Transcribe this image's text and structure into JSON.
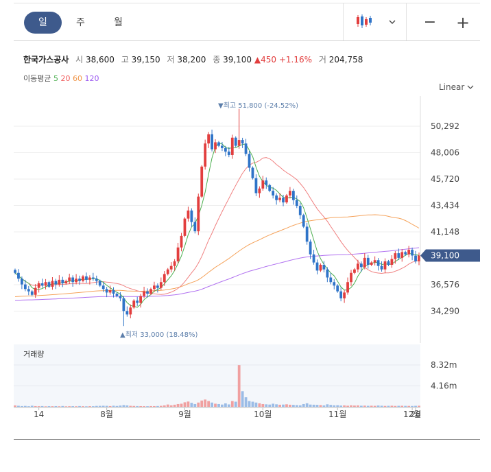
{
  "tabs": [
    {
      "label": "일",
      "active": true
    },
    {
      "label": "주",
      "active": false
    },
    {
      "label": "월",
      "active": false
    }
  ],
  "toolbar": {
    "chart_type_icon": "candlestick-icon",
    "dropdown_icon": "chevron-down-icon",
    "zoom_out": "−",
    "zoom_in": "+"
  },
  "stock": {
    "name": "한국가스공사",
    "open_label": "시",
    "open": "38,600",
    "high_label": "고",
    "high": "39,150",
    "low_label": "저",
    "low": "38,200",
    "close_label": "종",
    "close": "39,100",
    "change": "▲450",
    "change_pct": "+1.16%",
    "volume_label": "거",
    "volume": "204,758"
  },
  "ma_legend": {
    "label": "이동평균",
    "items": [
      {
        "period": "5",
        "color": "#4caf50"
      },
      {
        "period": "20",
        "color": "#f05c5c"
      },
      {
        "period": "60",
        "color": "#f0964a"
      },
      {
        "period": "120",
        "color": "#9b59f0"
      }
    ]
  },
  "scale_label": "Linear",
  "colors": {
    "up": "#e23e3e",
    "down": "#2f74c8",
    "current_tag": "#3e5a8c",
    "ma5": "#4caf50",
    "ma20": "#f08080",
    "ma60": "#f5a25a",
    "ma120": "#b070f0",
    "grid": "#eeeeee"
  },
  "chart_data": {
    "type": "candlestick",
    "y_ticks": [
      "50,292",
      "48,006",
      "45,720",
      "43,434",
      "41,148",
      "36,576",
      "34,290"
    ],
    "current_price": "39,100",
    "max_annotation": "▼최고 51,800 (-24.52%)",
    "min_annotation": "▲최저 33,000 (18.48%)",
    "volume_label": "거래량",
    "volume_ticks": [
      "8.32m",
      "4.16m"
    ],
    "x_labels": [
      "14",
      "8월",
      "9월",
      "10월",
      "11월",
      "12월",
      "28"
    ],
    "ylim": [
      33000,
      51800
    ],
    "volume_max": 8320000,
    "closes": [
      37600,
      37100,
      36600,
      36200,
      36000,
      35700,
      36300,
      36700,
      36500,
      36800,
      36400,
      36900,
      36600,
      37000,
      36700,
      36900,
      37200,
      36800,
      37100,
      36900,
      37300,
      37000,
      37200,
      37100,
      36900,
      36500,
      36200,
      35900,
      36100,
      35800,
      35600,
      35400,
      34300,
      34000,
      34600,
      35200,
      35000,
      35600,
      36000,
      35800,
      36200,
      36500,
      36300,
      36800,
      37500,
      37900,
      38200,
      38600,
      39800,
      40800,
      42300,
      43000,
      42000,
      41200,
      44200,
      46800,
      48800,
      49600,
      48300,
      48900,
      48600,
      48400,
      48100,
      47800,
      49300,
      48600,
      49100,
      48800,
      47900,
      46700,
      45800,
      44500,
      44900,
      45600,
      45200,
      44700,
      44300,
      43900,
      44100,
      43700,
      44300,
      44700,
      43900,
      43400,
      42600,
      41600,
      40300,
      39200,
      38500,
      37800,
      38300,
      37900,
      37200,
      36800,
      36500,
      36000,
      35400,
      35900,
      36800,
      37600,
      37900,
      38400,
      38100,
      38900,
      38300,
      38500,
      38700,
      38200,
      37900,
      38600,
      38300,
      38800,
      39300,
      38900,
      39400,
      39200,
      39600,
      39100,
      38600,
      39100
    ],
    "volumes": [
      0.28,
      0.21,
      0.15,
      0.18,
      0.12,
      0.22,
      0.14,
      0.12,
      0.15,
      0.1,
      0.13,
      0.12,
      0.14,
      0.11,
      0.16,
      0.1,
      0.12,
      0.13,
      0.11,
      0.15,
      0.12,
      0.1,
      0.13,
      0.12,
      0.18,
      0.19,
      0.21,
      0.2,
      0.15,
      0.22,
      0.17,
      0.25,
      0.34,
      0.28,
      0.2,
      0.17,
      0.15,
      0.14,
      0.13,
      0.12,
      0.15,
      0.14,
      0.16,
      0.2,
      0.28,
      0.46,
      0.3,
      0.42,
      0.55,
      0.62,
      0.9,
      1.05,
      0.8,
      0.55,
      0.85,
      1.25,
      1.45,
      1.15,
      0.85,
      0.62,
      0.55,
      0.45,
      0.68,
      0.48,
      1.15,
      1.02,
      8.3,
      3.1,
      1.9,
      1.15,
      1.02,
      0.85,
      0.7,
      0.55,
      0.5,
      0.45,
      0.62,
      0.5,
      0.42,
      0.45,
      0.5,
      0.42,
      0.38,
      0.35,
      0.3,
      0.55,
      0.7,
      0.45,
      0.42,
      0.4,
      0.35,
      0.28,
      0.5,
      0.38,
      0.3,
      0.32,
      0.25,
      0.28,
      0.22,
      0.3,
      0.25,
      0.28,
      0.22,
      0.24,
      0.2,
      0.22,
      0.2,
      0.26,
      0.22,
      0.18,
      0.2,
      0.22,
      0.18,
      0.2,
      0.21,
      0.19,
      0.18,
      0.17,
      0.2,
      0.22
    ]
  }
}
